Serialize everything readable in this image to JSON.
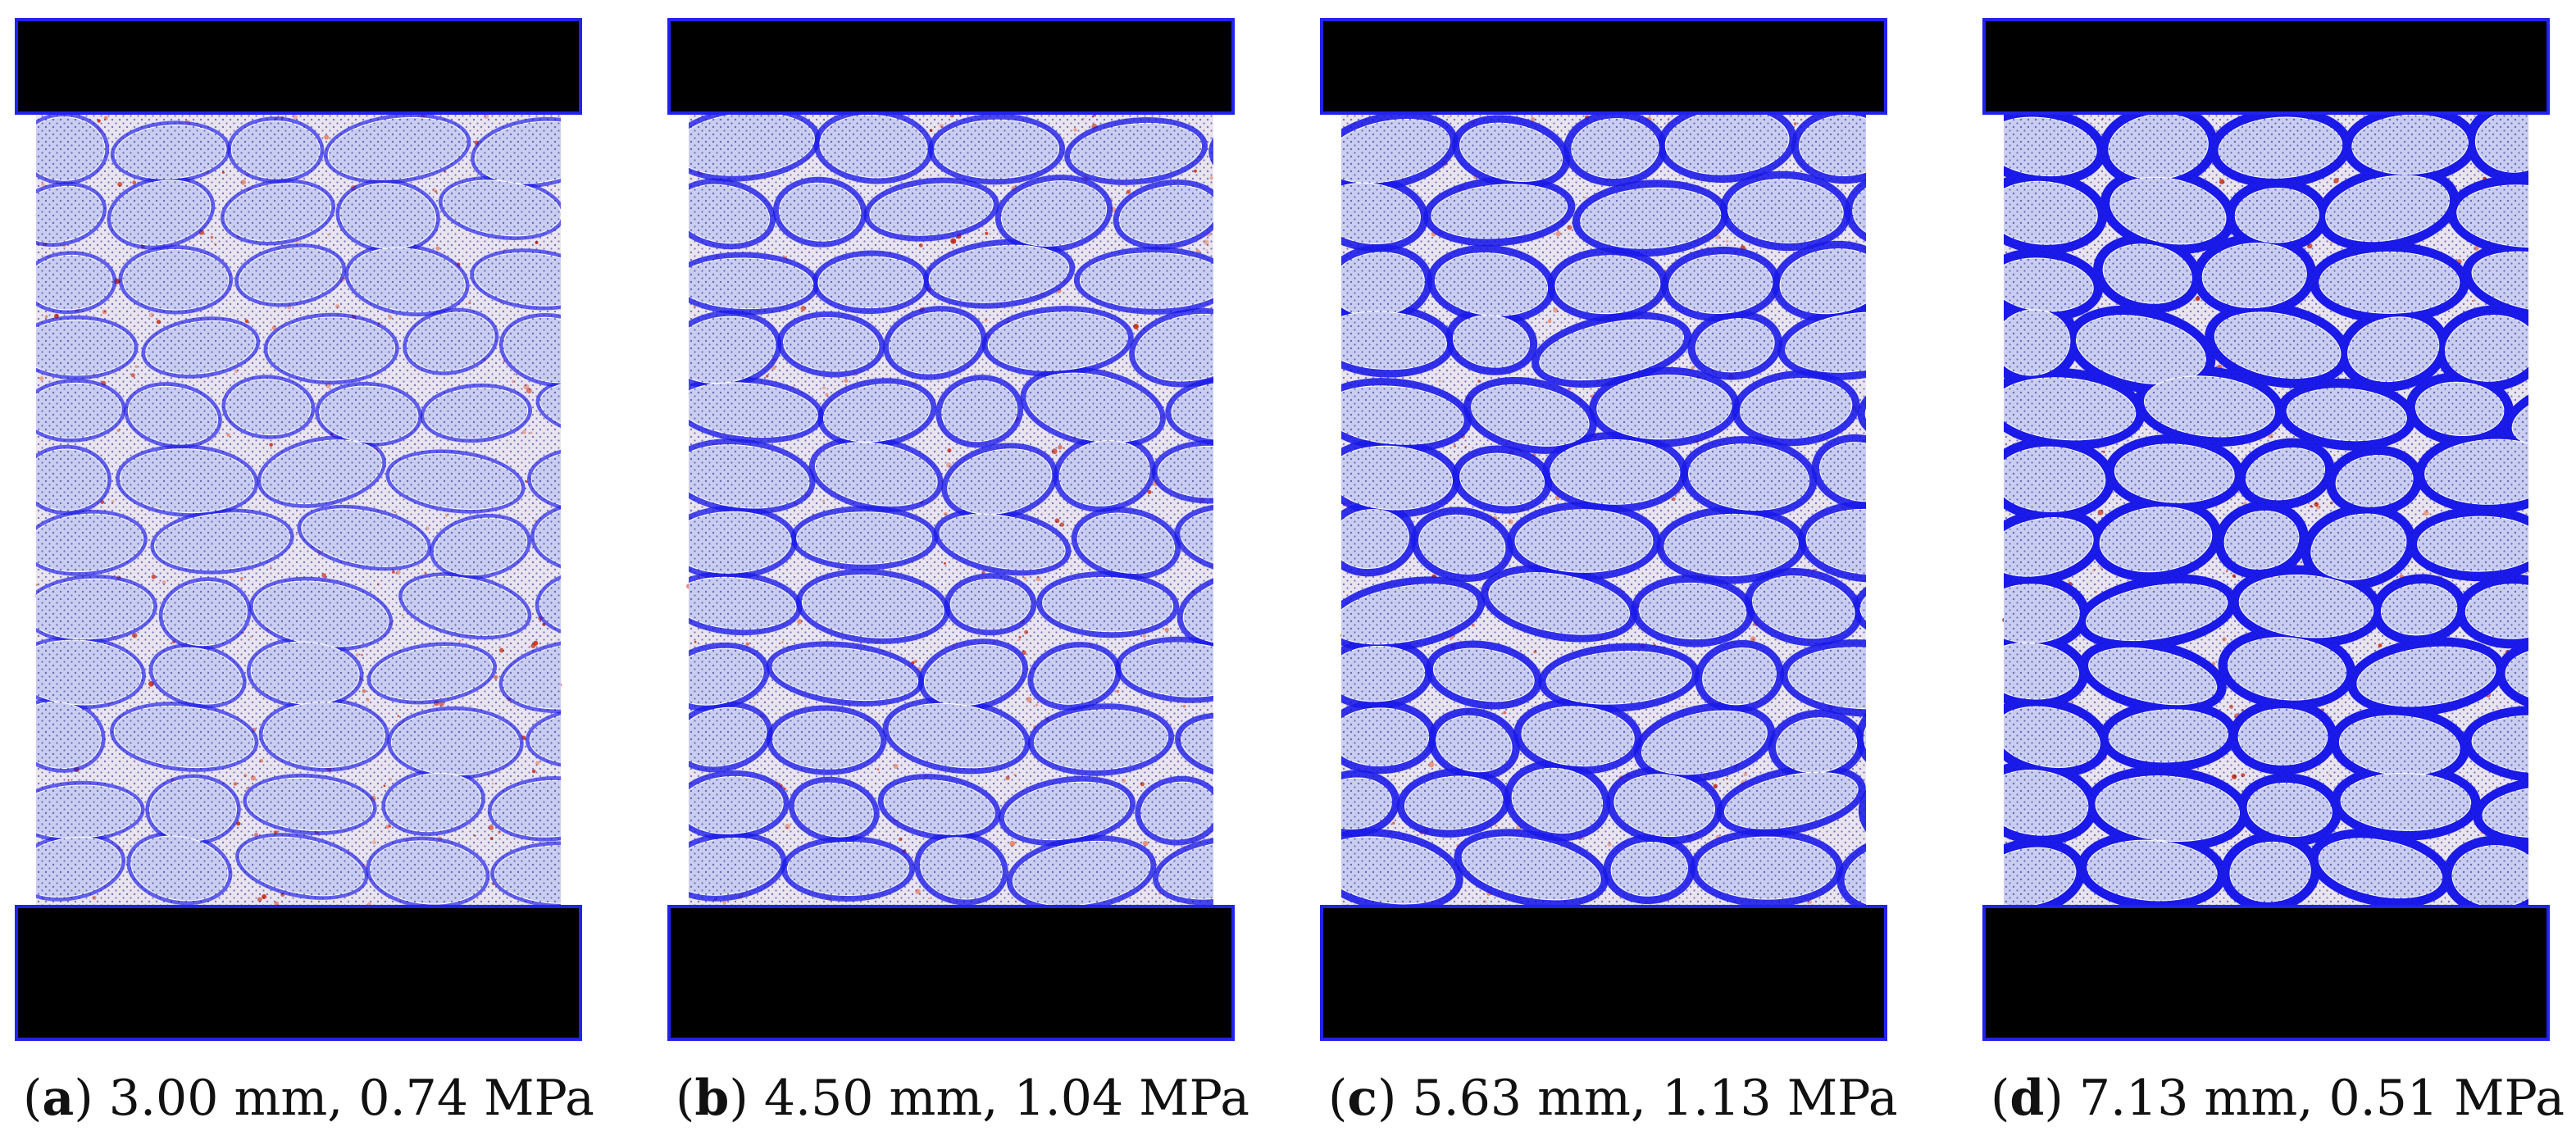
{
  "panels": [
    {
      "letter": "a",
      "text": "3.00 mm, 0.74 MPa",
      "damage_level": 0.25
    },
    {
      "letter": "b",
      "text": "4.50 mm, 1.04 MPa",
      "damage_level": 0.5
    },
    {
      "letter": "c",
      "text": "5.63 mm, 1.13 MPa",
      "damage_level": 0.75
    },
    {
      "letter": "d",
      "text": "7.13 mm, 0.51 MPa",
      "damage_level": 1.0
    }
  ],
  "colors": {
    "platen_fill": "#000000",
    "platen_border": "#2222ee",
    "aggregate_fill": "#c9cdf0",
    "aggregate_dots": "#1a1a8a",
    "crack_blue": "#1a1aee",
    "mortar_red": "#cc2200",
    "background": "#ffffff"
  }
}
